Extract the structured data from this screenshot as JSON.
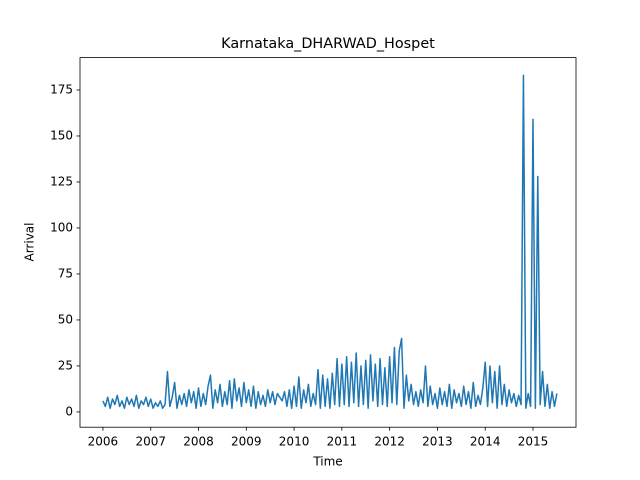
{
  "chart_data": {
    "type": "line",
    "title": "Karnataka_DHARWAD_Hospet",
    "x_label": "Time",
    "y_label": "Arrival",
    "x": [
      2006,
      2006.05,
      2006.1,
      2006.15,
      2006.2,
      2006.25,
      2006.3,
      2006.35,
      2006.4,
      2006.45,
      2006.5,
      2006.55,
      2006.6,
      2006.65,
      2006.7,
      2006.75,
      2006.8,
      2006.85,
      2006.9,
      2006.95,
      2007,
      2007.05,
      2007.1,
      2007.15,
      2007.2,
      2007.25,
      2007.3,
      2007.35,
      2007.4,
      2007.45,
      2007.5,
      2007.55,
      2007.6,
      2007.65,
      2007.7,
      2007.75,
      2007.8,
      2007.85,
      2007.9,
      2007.95,
      2008,
      2008.05,
      2008.1,
      2008.15,
      2008.2,
      2008.25,
      2008.3,
      2008.35,
      2008.4,
      2008.45,
      2008.5,
      2008.55,
      2008.6,
      2008.65,
      2008.7,
      2008.75,
      2008.8,
      2008.85,
      2008.9,
      2008.95,
      2009,
      2009.05,
      2009.1,
      2009.15,
      2009.2,
      2009.25,
      2009.3,
      2009.35,
      2009.4,
      2009.45,
      2009.5,
      2009.55,
      2009.6,
      2009.65,
      2009.7,
      2009.75,
      2009.8,
      2009.85,
      2009.9,
      2009.95,
      2010,
      2010.05,
      2010.1,
      2010.15,
      2010.2,
      2010.25,
      2010.3,
      2010.35,
      2010.4,
      2010.45,
      2010.5,
      2010.55,
      2010.6,
      2010.65,
      2010.7,
      2010.75,
      2010.8,
      2010.85,
      2010.9,
      2010.95,
      2011,
      2011.05,
      2011.1,
      2011.15,
      2011.2,
      2011.25,
      2011.3,
      2011.35,
      2011.4,
      2011.45,
      2011.5,
      2011.55,
      2011.6,
      2011.65,
      2011.7,
      2011.75,
      2011.8,
      2011.85,
      2011.9,
      2011.95,
      2012,
      2012.05,
      2012.1,
      2012.15,
      2012.2,
      2012.25,
      2012.3,
      2012.35,
      2012.4,
      2012.45,
      2012.5,
      2012.55,
      2012.6,
      2012.65,
      2012.7,
      2012.75,
      2012.8,
      2012.85,
      2012.9,
      2012.95,
      2013,
      2013.05,
      2013.1,
      2013.15,
      2013.2,
      2013.25,
      2013.3,
      2013.35,
      2013.4,
      2013.45,
      2013.5,
      2013.55,
      2013.6,
      2013.65,
      2013.7,
      2013.75,
      2013.8,
      2013.85,
      2013.9,
      2013.95,
      2014,
      2014.05,
      2014.1,
      2014.15,
      2014.2,
      2014.25,
      2014.3,
      2014.35,
      2014.4,
      2014.45,
      2014.5,
      2014.55,
      2014.6,
      2014.65,
      2014.7,
      2014.75,
      2014.8,
      2014.85,
      2014.9,
      2014.95,
      2015,
      2015.05,
      2015.1,
      2015.15,
      2015.2,
      2015.25,
      2015.3,
      2015.35,
      2015.4,
      2015.45,
      2015.5
    ],
    "series": [
      {
        "name": "Arrival",
        "color": "#1f77b4",
        "values": [
          6,
          3,
          8,
          2,
          7,
          4,
          9,
          3,
          6,
          2,
          8,
          4,
          7,
          3,
          9,
          2,
          6,
          4,
          8,
          3,
          7,
          2,
          5,
          3,
          6,
          2,
          4,
          22,
          3,
          8,
          16,
          2,
          9,
          4,
          10,
          3,
          12,
          5,
          11,
          2,
          13,
          3,
          10,
          4,
          14,
          20,
          2,
          12,
          5,
          15,
          3,
          11,
          4,
          17,
          2,
          18,
          6,
          13,
          3,
          16,
          5,
          12,
          3,
          14,
          2,
          11,
          4,
          9,
          3,
          12,
          5,
          11,
          4,
          10,
          8,
          6,
          11,
          3,
          12,
          2,
          14,
          3,
          19,
          2,
          12,
          5,
          15,
          3,
          10,
          4,
          23,
          2,
          20,
          3,
          18,
          2,
          21,
          4,
          29,
          3,
          26,
          4,
          30,
          3,
          27,
          5,
          32,
          3,
          25,
          4,
          28,
          2,
          31,
          6,
          26,
          3,
          29,
          4,
          24,
          3,
          30,
          5,
          35,
          4,
          33,
          40,
          2,
          20,
          6,
          15,
          4,
          11,
          3,
          12,
          5,
          25,
          3,
          14,
          4,
          10,
          2,
          13,
          4,
          11,
          3,
          15,
          2,
          12,
          5,
          10,
          3,
          14,
          4,
          11,
          2,
          16,
          3,
          9,
          4,
          13,
          27,
          3,
          25,
          5,
          22,
          2,
          25,
          4,
          15,
          3,
          12,
          5,
          10,
          3,
          9,
          4,
          183,
          2,
          10,
          3,
          159,
          2,
          128,
          4,
          22,
          3,
          15,
          2,
          11,
          3,
          10
        ]
      }
    ],
    "xlim": [
      2005.52,
      2015.9
    ],
    "xticks": [
      2006,
      2007,
      2008,
      2009,
      2010,
      2011,
      2012,
      2013,
      2014,
      2015
    ],
    "ylim": [
      -8.3,
      192.6
    ],
    "yticks": [
      0,
      25,
      50,
      75,
      100,
      125,
      150,
      175
    ],
    "grid": false
  }
}
